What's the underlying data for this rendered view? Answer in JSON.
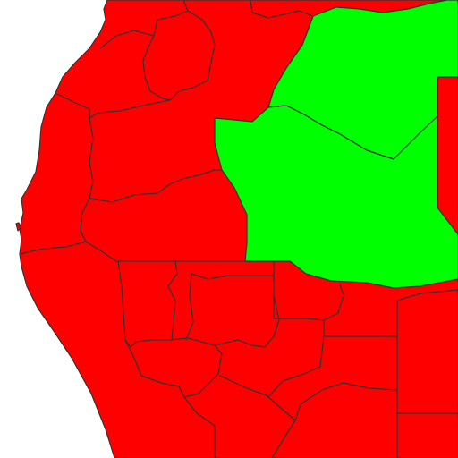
{
  "map": {
    "colors": {
      "ocean": "#ffffff",
      "highlighted": "#00ff00",
      "default": "#ff0000",
      "border": "#333333"
    },
    "regions": [
      {
        "id": "western-africa-land",
        "status": "default"
      },
      {
        "id": "highlighted-region-north",
        "status": "highlighted"
      },
      {
        "id": "highlighted-region-south",
        "status": "highlighted"
      }
    ]
  }
}
